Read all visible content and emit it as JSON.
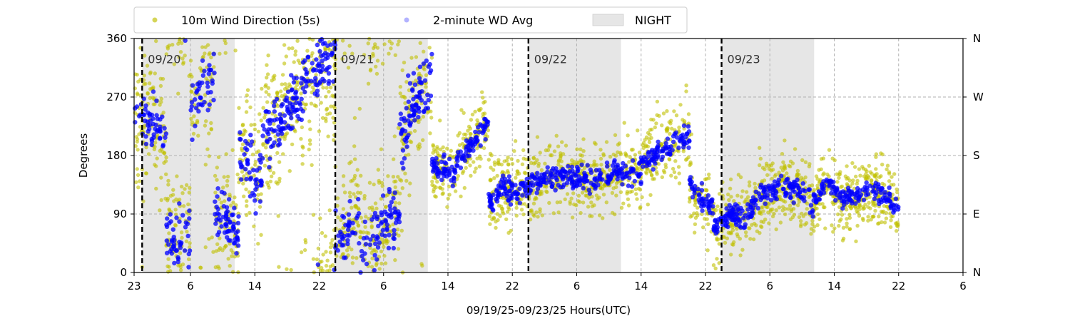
{
  "chart_data": {
    "type": "scatter",
    "xlabel": "09/19/25-09/23/25  Hours(UTC)",
    "ylabel": "Degrees",
    "xlim": [
      0,
      103
    ],
    "ylim": [
      0,
      360
    ],
    "x_ticks": [
      {
        "x": 0,
        "label": "23"
      },
      {
        "x": 7,
        "label": "6"
      },
      {
        "x": 15,
        "label": "14"
      },
      {
        "x": 23,
        "label": "22"
      },
      {
        "x": 31,
        "label": "6"
      },
      {
        "x": 39,
        "label": "14"
      },
      {
        "x": 47,
        "label": "22"
      },
      {
        "x": 55,
        "label": "6"
      },
      {
        "x": 63,
        "label": "14"
      },
      {
        "x": 71,
        "label": "22"
      },
      {
        "x": 79,
        "label": "6"
      },
      {
        "x": 87,
        "label": "14"
      },
      {
        "x": 95,
        "label": "22"
      },
      {
        "x": 103,
        "label": "6"
      }
    ],
    "y_ticks_left": [
      "0",
      "90",
      "180",
      "270",
      "360"
    ],
    "y_ticks_right": [
      "N",
      "E",
      "S",
      "W",
      "N"
    ],
    "day_markers": [
      {
        "x": 1,
        "label": "09/20"
      },
      {
        "x": 25,
        "label": "09/21"
      },
      {
        "x": 49,
        "label": "09/22"
      },
      {
        "x": 73,
        "label": "09/23"
      }
    ],
    "night_spans": [
      [
        1,
        12.5
      ],
      [
        25,
        36.5
      ],
      [
        49,
        60.5
      ],
      [
        73,
        84.5
      ]
    ],
    "grid": true,
    "legend_position": "top-left",
    "series": [
      {
        "name": "10m Wind Direction (5s)",
        "color": "#bfbf00",
        "marker": "circle"
      },
      {
        "name": "2-minute WD Avg",
        "color": "#0000ff",
        "marker": "circle"
      }
    ],
    "legend_night_label": "NIGHT",
    "trend_segments": [
      {
        "x0": 0,
        "x1": 4,
        "dir": [
          255,
          230,
          200
        ]
      },
      {
        "x0": 4,
        "x1": 7,
        "dir": [
          60,
          40,
          60
        ]
      },
      {
        "x0": 7,
        "x1": 10,
        "dir": [
          250,
          290,
          300
        ]
      },
      {
        "x0": 10,
        "x1": 13,
        "dir": [
          90,
          75,
          60
        ]
      },
      {
        "x0": 13,
        "x1": 16,
        "dir": [
          180,
          160,
          140
        ]
      },
      {
        "x0": 16,
        "x1": 21,
        "dir": [
          200,
          240,
          280
        ]
      },
      {
        "x0": 21,
        "x1": 25,
        "dir": [
          300,
          320,
          340
        ]
      },
      {
        "x0": 25,
        "x1": 28,
        "dir": [
          40,
          70,
          80
        ]
      },
      {
        "x0": 28,
        "x1": 33,
        "dir": [
          30,
          60,
          100
        ]
      },
      {
        "x0": 33,
        "x1": 37,
        "dir": [
          200,
          270,
          300
        ]
      },
      {
        "x0": 37,
        "x1": 40,
        "dir": [
          170,
          160,
          150
        ]
      },
      {
        "x0": 40,
        "x1": 44,
        "dir": [
          170,
          200,
          230
        ]
      },
      {
        "x0": 44,
        "x1": 48,
        "dir": [
          110,
          130,
          120
        ]
      },
      {
        "x0": 48,
        "x1": 57,
        "dir": [
          130,
          150,
          145
        ]
      },
      {
        "x0": 57,
        "x1": 63,
        "dir": [
          140,
          155,
          150
        ]
      },
      {
        "x0": 63,
        "x1": 69,
        "dir": [
          170,
          190,
          210
        ]
      },
      {
        "x0": 69,
        "x1": 72,
        "dir": [
          140,
          110,
          100
        ]
      },
      {
        "x0": 72,
        "x1": 76,
        "dir": [
          70,
          90,
          80
        ]
      },
      {
        "x0": 76,
        "x1": 80,
        "dir": [
          90,
          120,
          130
        ]
      },
      {
        "x0": 80,
        "x1": 84,
        "dir": [
          140,
          125,
          120
        ]
      },
      {
        "x0": 84,
        "x1": 88,
        "dir": [
          100,
          140,
          110
        ]
      },
      {
        "x0": 88,
        "x1": 95,
        "dir": [
          110,
          130,
          100
        ]
      }
    ]
  }
}
